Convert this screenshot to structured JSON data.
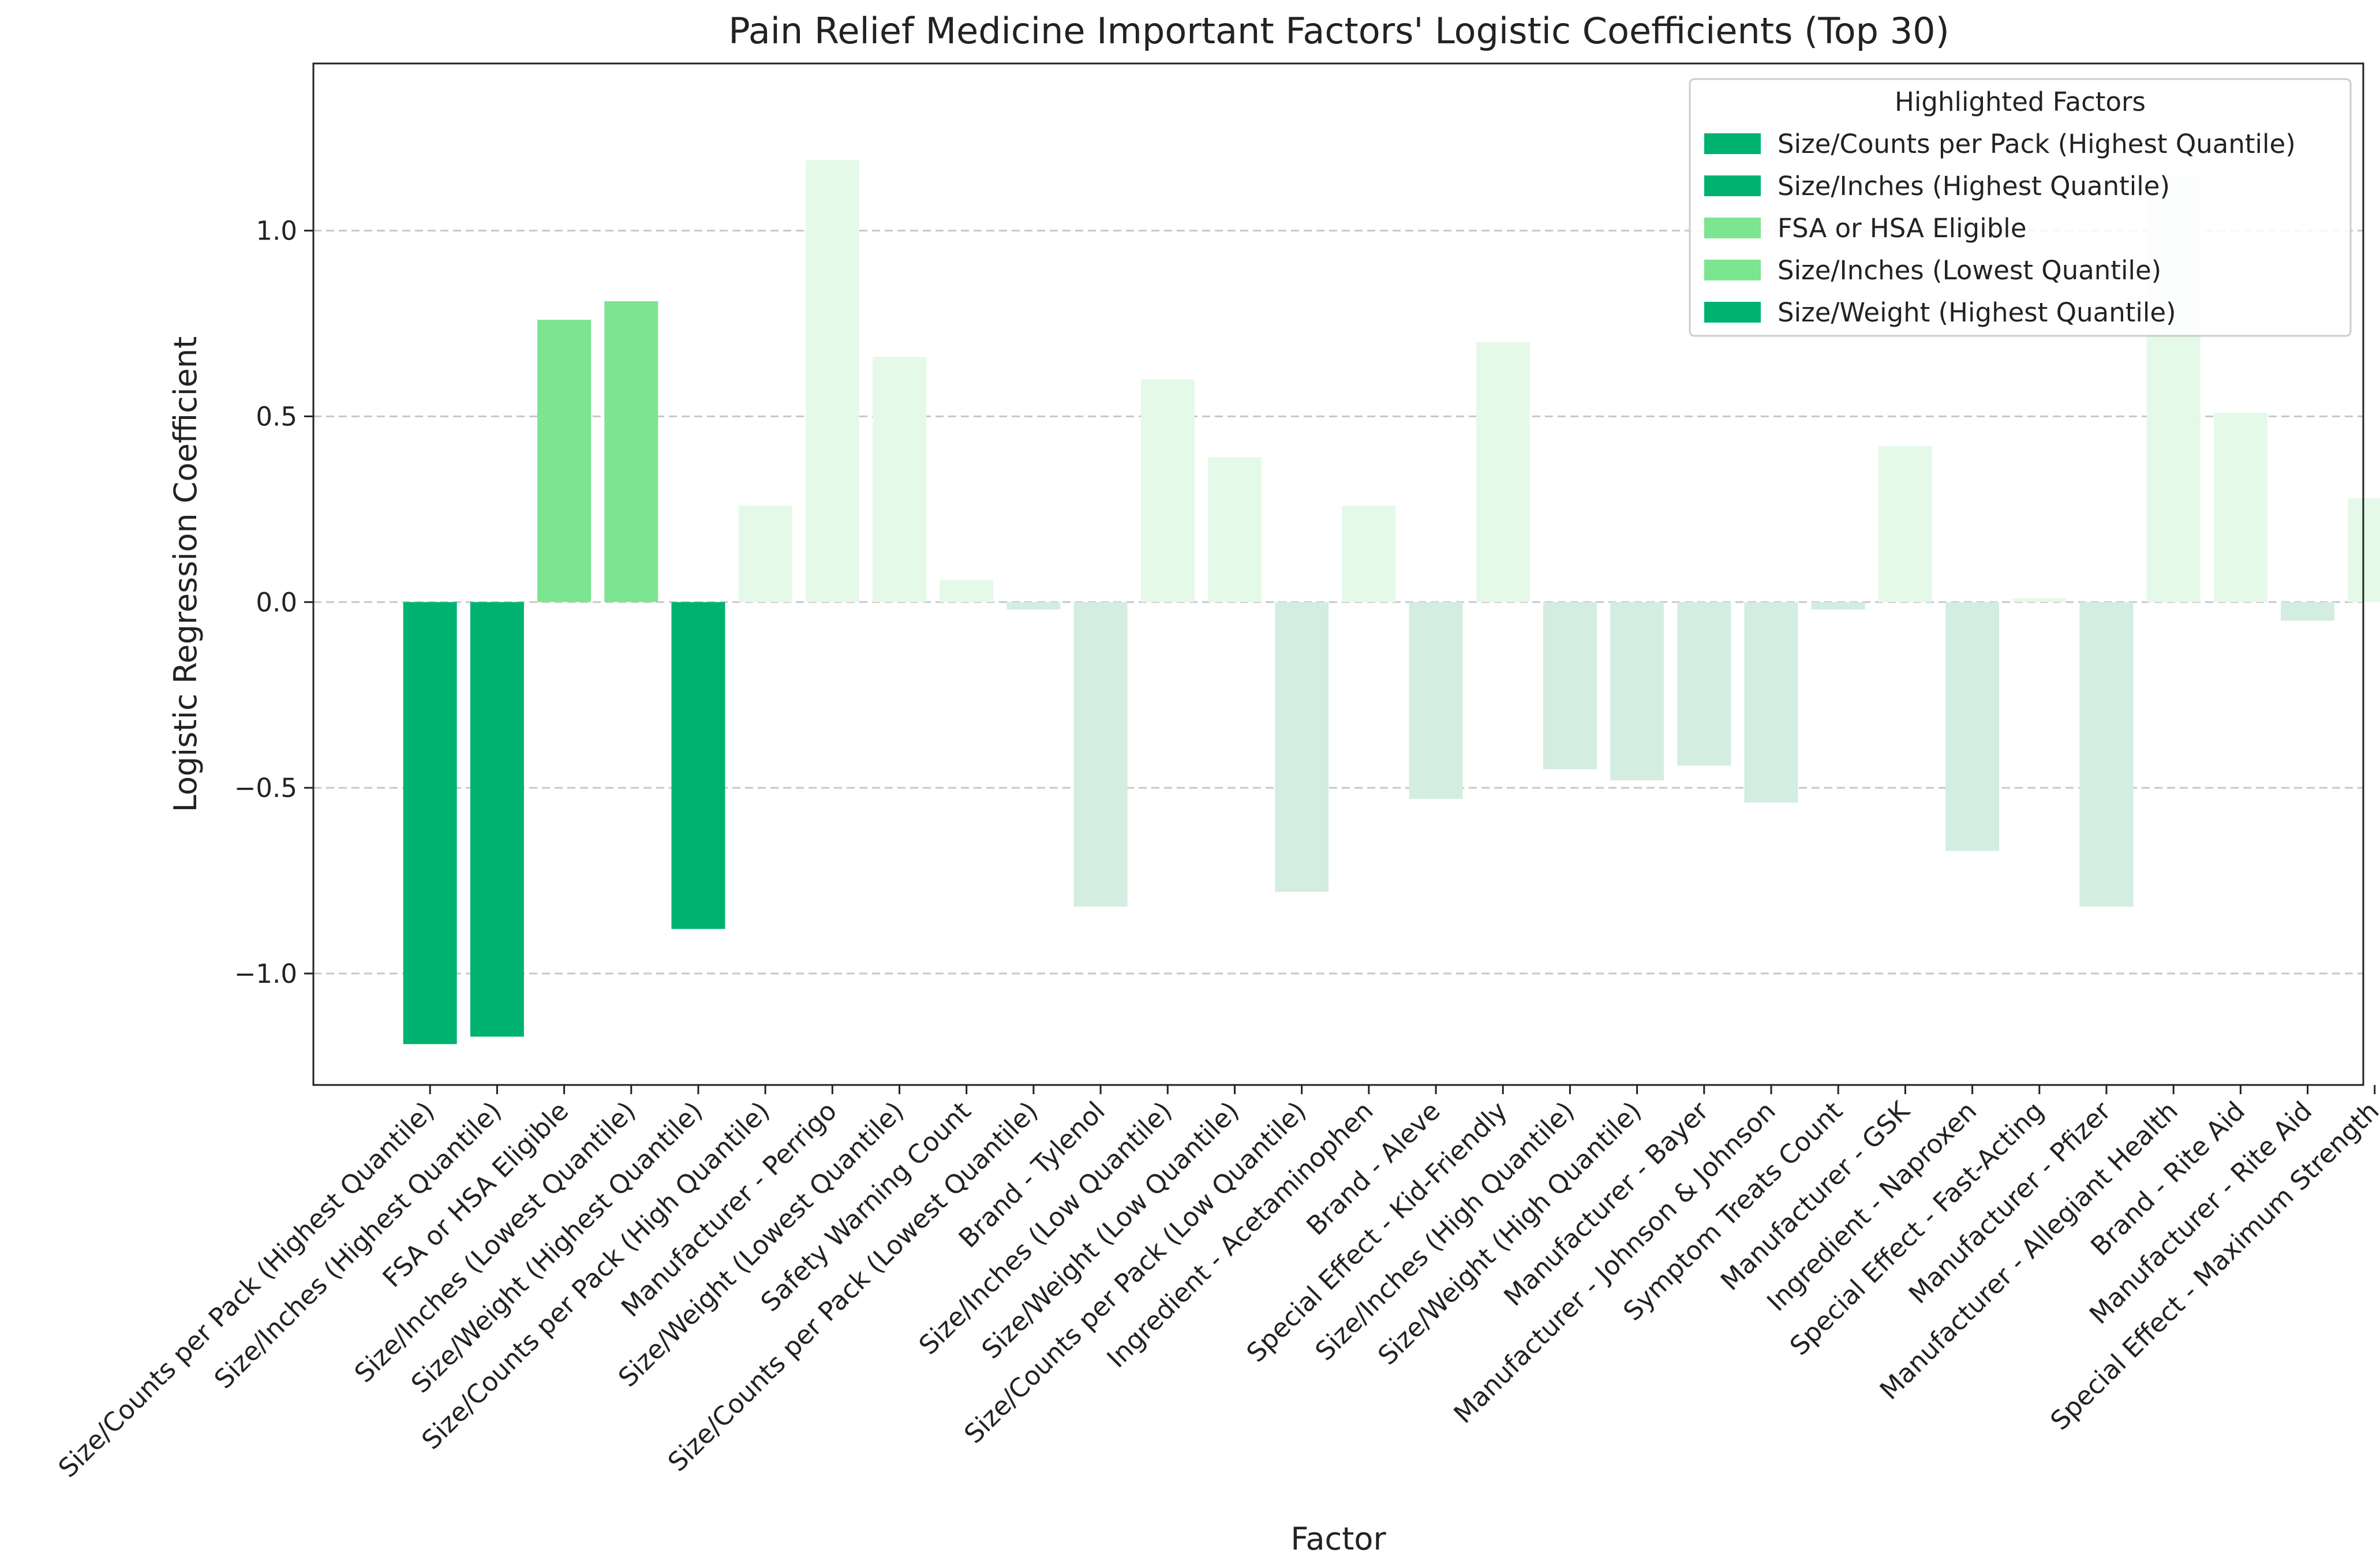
{
  "chart_data": {
    "type": "bar",
    "title": "Pain Relief Medicine Important Factors' Logistic Coefficients (Top 30)",
    "xlabel": "Factor",
    "ylabel": "Logistic Regression Coefficient",
    "ylim": [
      -1.3,
      1.45
    ],
    "yticks": [
      -1.0,
      -0.5,
      0.0,
      0.5,
      1.0
    ],
    "ytick_labels": [
      "−1.0",
      "−0.5",
      "0.0",
      "0.5",
      "1.0"
    ],
    "grid": "horizontal dashed",
    "legend": {
      "title": "Highlighted Factors",
      "position": "top-right",
      "entries": [
        {
          "label": "Size/Counts per Pack (Highest Quantile)",
          "color": "#00b26f"
        },
        {
          "label": "Size/Inches (Highest Quantile)",
          "color": "#00b26f"
        },
        {
          "label": "FSA or HSA Eligible",
          "color": "#7be58f"
        },
        {
          "label": "Size/Inches (Lowest Quantile)",
          "color": "#7be58f"
        },
        {
          "label": "Size/Weight (Highest Quantile)",
          "color": "#00b26f"
        }
      ]
    },
    "categories": [
      "Size/Counts per Pack (Highest Quantile)",
      "Size/Inches (Highest Quantile)",
      "FSA or HSA Eligible",
      "Size/Inches (Lowest Quantile)",
      "Size/Weight (Highest Quantile)",
      "Size/Counts per Pack (High Quantile)",
      "Manufacturer - Perrigo",
      "Size/Weight (Lowest Quantile)",
      "Safety Warning Count",
      "Size/Counts per Pack (Lowest Quantile)",
      "Brand - Tylenol",
      "Size/Inches (Low Quantile)",
      "Size/Weight (Low Quantile)",
      "Size/Counts per Pack (Low Quantile)",
      "Ingredient - Acetaminophen",
      "Brand - Aleve",
      "Special Effect - Kid-Friendly",
      "Size/Inches (High Quantile)",
      "Size/Weight (High Quantile)",
      "Manufacturer - Bayer",
      "Manufacturer - Johnson & Johnson",
      "Symptom Treats Count",
      "Manufacturer - GSK",
      "Ingredient - Naproxen",
      "Special Effect - Fast-Acting",
      "Manufacturer - Pfizer",
      "Manufacturer - Allegiant Health",
      "Brand - Rite Aid",
      "Manufacturer - Rite Aid",
      "Special Effect - Maximum Strength"
    ],
    "values": [
      -1.19,
      -1.17,
      0.76,
      0.81,
      -0.88,
      0.26,
      1.19,
      0.66,
      0.06,
      -0.02,
      -0.82,
      0.6,
      0.39,
      -0.78,
      0.26,
      -0.53,
      0.7,
      -0.45,
      -0.48,
      -0.44,
      -0.54,
      -0.02,
      0.42,
      -0.67,
      0.01,
      -0.82,
      1.15,
      0.51,
      -0.05,
      0.28
    ],
    "highlighted": [
      true,
      true,
      true,
      true,
      true,
      false,
      false,
      false,
      false,
      false,
      false,
      false,
      false,
      false,
      false,
      false,
      false,
      false,
      false,
      false,
      false,
      false,
      false,
      false,
      false,
      false,
      false,
      false,
      false,
      false
    ],
    "colors": {
      "highlight_negative": "#00b26f",
      "highlight_positive": "#7be58f",
      "muted_positive": "#e5f9e8",
      "muted_negative": "#d3ede1",
      "grid": "#c8c8c8",
      "axis": "#222222"
    }
  }
}
